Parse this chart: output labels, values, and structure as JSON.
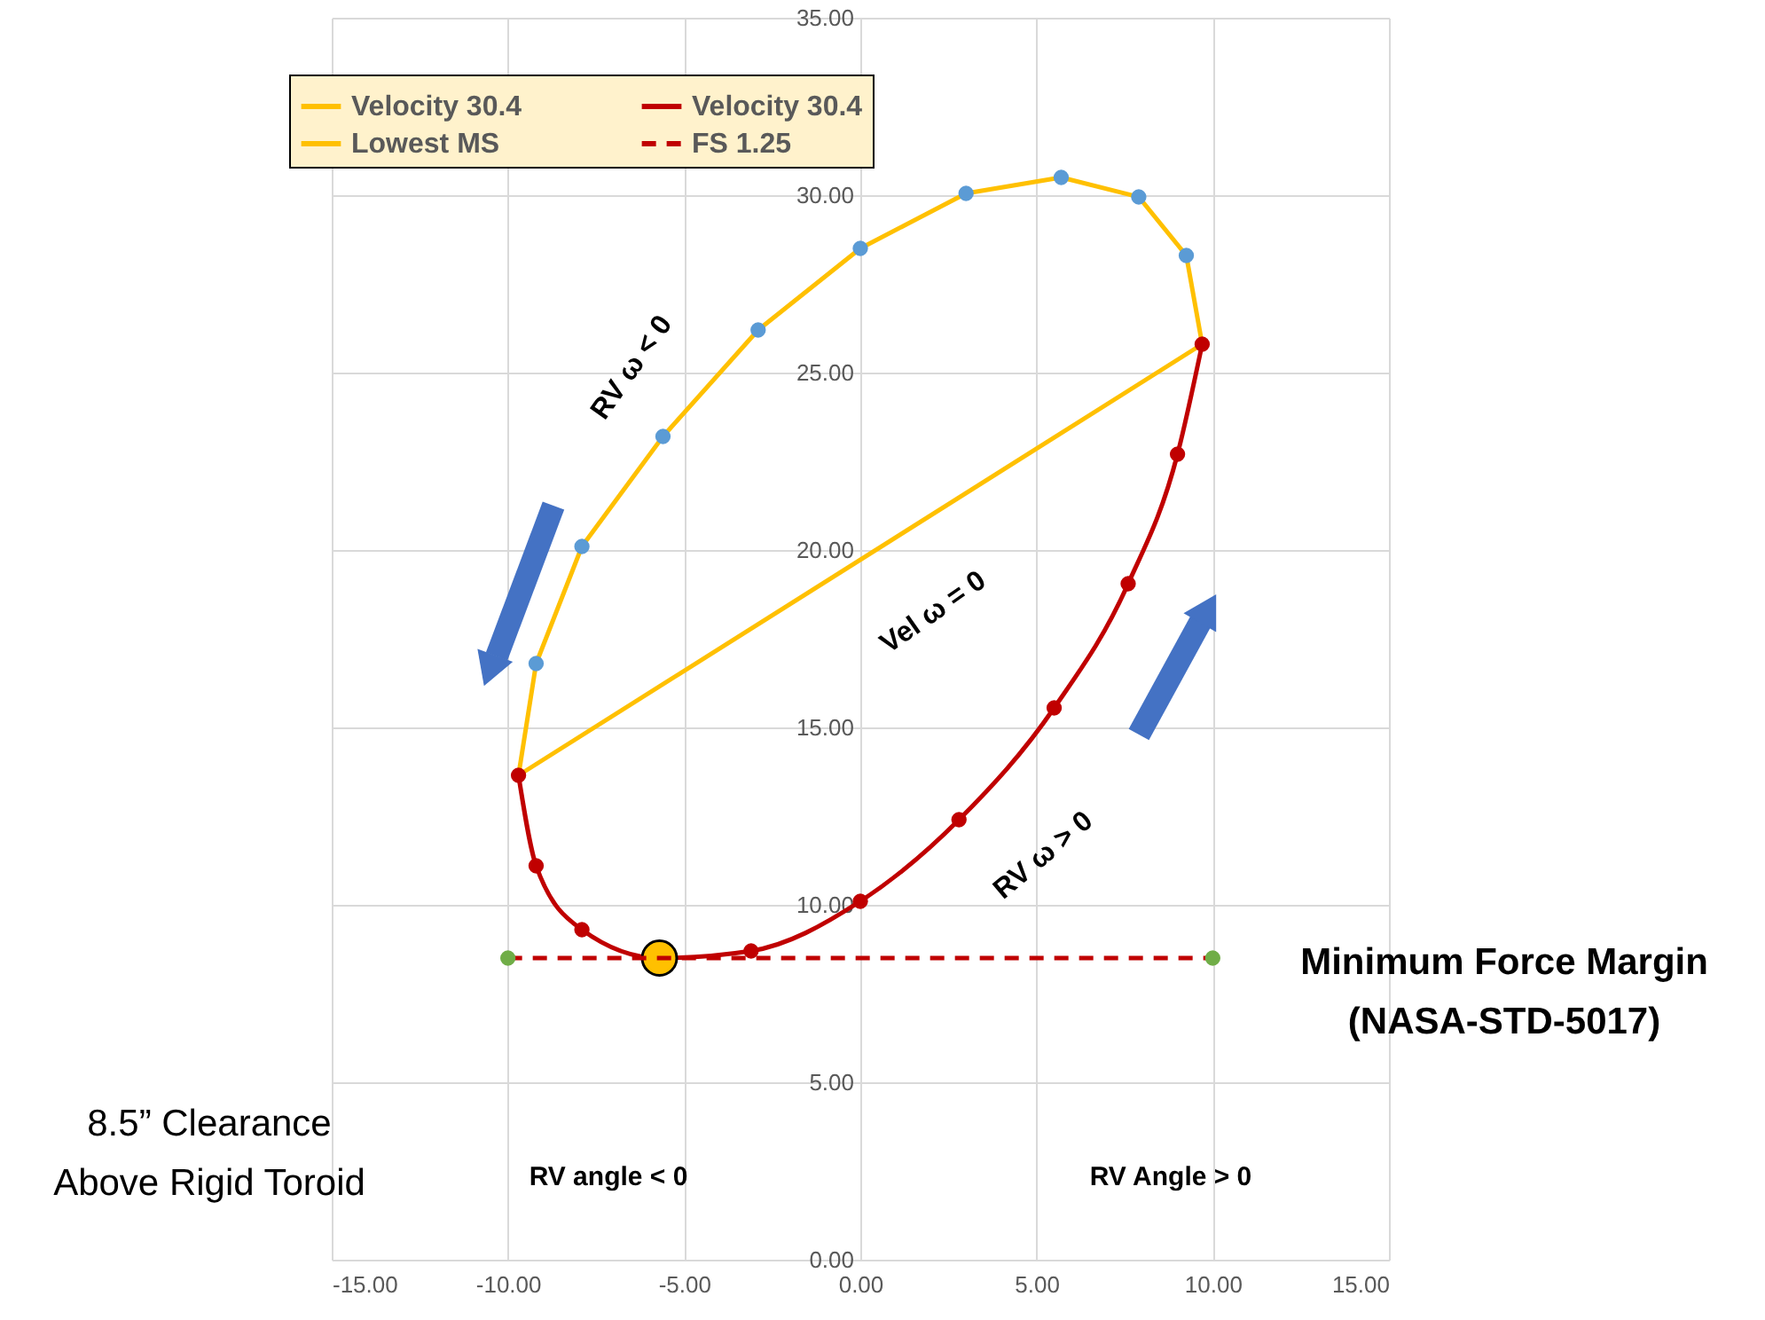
{
  "chart_data": {
    "type": "line",
    "xlim": [
      -15,
      15
    ],
    "ylim": [
      0,
      35
    ],
    "xticks": [
      {
        "value": -15,
        "label": "-15.00"
      },
      {
        "value": -10,
        "label": "-10.00"
      },
      {
        "value": -5,
        "label": "-5.00"
      },
      {
        "value": 0,
        "label": "0.00"
      },
      {
        "value": 5,
        "label": "5.00"
      },
      {
        "value": 10,
        "label": "10.00"
      },
      {
        "value": 15,
        "label": "15.00"
      }
    ],
    "yticks": [
      {
        "value": 0,
        "label": "0.00"
      },
      {
        "value": 5,
        "label": "5.00"
      },
      {
        "value": 10,
        "label": "10.00"
      },
      {
        "value": 15,
        "label": "15.00"
      },
      {
        "value": 20,
        "label": "20.00"
      },
      {
        "value": 25,
        "label": "25.00"
      },
      {
        "value": 30,
        "label": "30.00"
      },
      {
        "value": 35,
        "label": "35.00"
      }
    ],
    "grid": true,
    "legend": "top",
    "series": [
      {
        "name": "Velocity 30.4",
        "type": "line",
        "color": "#ffc000",
        "marker": "circle",
        "x": [
          9.7,
          9.25,
          7.9,
          5.7,
          3.0,
          0,
          -2.9,
          -5.6,
          -7.9,
          -9.2,
          -9.7
        ],
        "values": [
          25.8,
          28.3,
          29.95,
          30.5,
          30.05,
          28.5,
          26.2,
          23.2,
          20.1,
          16.8,
          13.65
        ],
        "colors": [
          null,
          "#5b9bd5",
          "#5b9bd5",
          "#5b9bd5",
          "#5b9bd5",
          "#5b9bd5",
          "#5b9bd5",
          "#5b9bd5",
          "#5b9bd5",
          "#5b9bd5",
          null
        ]
      },
      {
        "type": "line",
        "color": "#ffc000",
        "x": [
          -9.7,
          9.7
        ],
        "values": [
          13.65,
          25.8
        ]
      },
      {
        "name": "Velocity 30.4",
        "type": "line",
        "color": "#c00000",
        "marker": "circle",
        "x": [
          -9.7,
          -9.2,
          -7.9,
          -5.7,
          -3.1,
          0,
          2.8,
          5.5,
          7.6,
          9.0,
          9.7
        ],
        "values": [
          13.65,
          11.1,
          9.3,
          8.5,
          8.7,
          10.1,
          12.4,
          15.55,
          19.05,
          22.7,
          25.8
        ],
        "colors": [
          "#c00000",
          "#c00000",
          "#c00000",
          null,
          "#c00000",
          "#c00000",
          "#c00000",
          "#c00000",
          "#c00000",
          "#c00000",
          "#c00000"
        ]
      },
      {
        "name": "Lowest MS",
        "type": "scatter",
        "color": "#ffc000",
        "marker": "circle",
        "x": [
          -5.7
        ],
        "values": [
          8.5
        ]
      },
      {
        "name": "FS 1.25",
        "type": "line",
        "color": "#c00000",
        "line_style": "dashed",
        "marker": "circle",
        "x": [
          -10,
          10
        ],
        "values": [
          8.5,
          8.5
        ],
        "colors": [
          "#70ad47",
          "#70ad47"
        ]
      }
    ],
    "annotations": [
      "RV ω < 0",
      "Vel ω = 0",
      "RV ω > 0",
      "RV angle < 0",
      "RV Angle > 0",
      "Minimum Force Margin\n(NASA-STD-5017)",
      "8.5” Clearance\nAbove Rigid Toroid"
    ]
  }
}
